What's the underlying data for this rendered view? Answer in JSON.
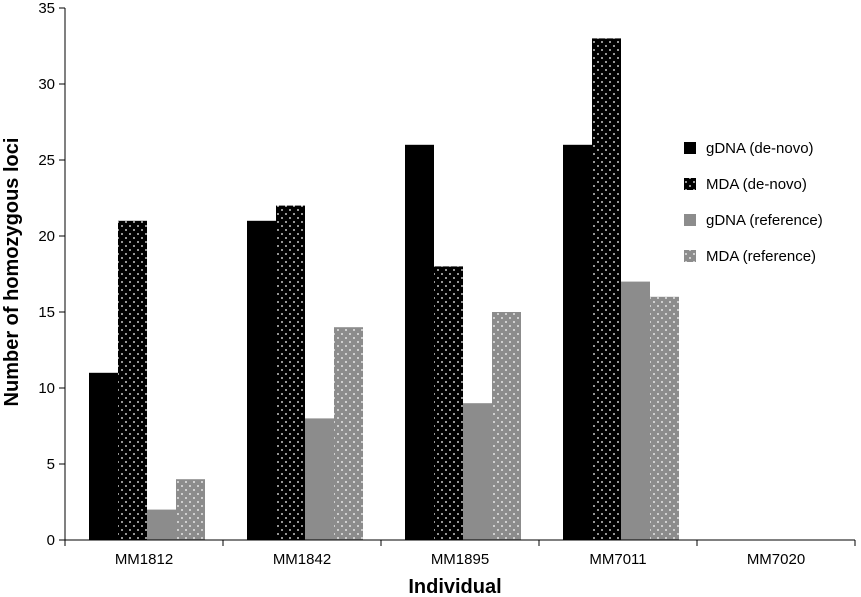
{
  "chart_data": {
    "type": "bar",
    "title": "",
    "xlabel": "Individual",
    "ylabel": "Number of homozygous loci",
    "ylim": [
      0,
      35
    ],
    "yticks": [
      0,
      5,
      10,
      15,
      20,
      25,
      30,
      35
    ],
    "grid": false,
    "legend_position": "right",
    "categories": [
      "MM1812",
      "MM1842",
      "MM1895",
      "MM7011",
      "MM7020"
    ],
    "series": [
      {
        "name": "gDNA (de-novo)",
        "values": [
          11,
          21,
          26,
          26,
          0
        ],
        "color": "#000000",
        "pattern": "solid"
      },
      {
        "name": "MDA (de-novo)",
        "values": [
          21,
          22,
          18,
          33,
          0
        ],
        "color": "#000000",
        "pattern": "white-dots"
      },
      {
        "name": "gDNA (reference)",
        "values": [
          2,
          8,
          9,
          17,
          0
        ],
        "color": "#8c8c8c",
        "pattern": "solid"
      },
      {
        "name": "MDA (reference)",
        "values": [
          4,
          14,
          15,
          16,
          0
        ],
        "color": "#8c8c8c",
        "pattern": "white-dots"
      }
    ]
  }
}
